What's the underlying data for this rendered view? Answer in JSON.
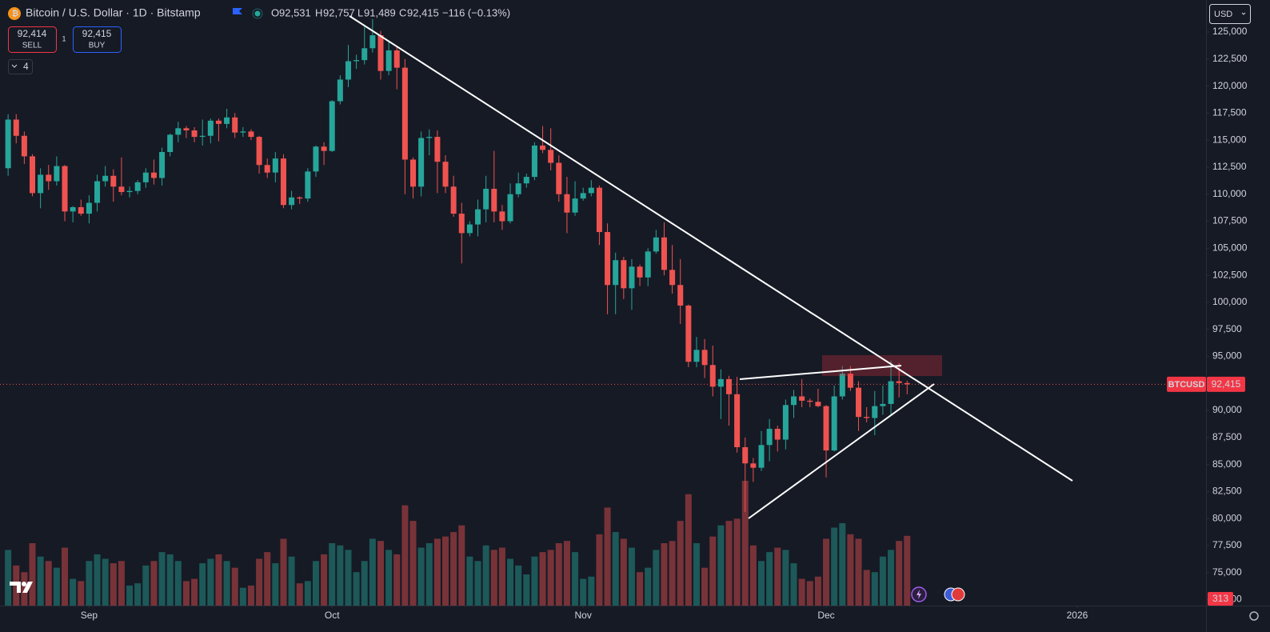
{
  "header": {
    "title": "Bitcoin / U.S. Dollar · 1D · Bitstamp",
    "open_label": "O",
    "open": "92,531",
    "high_label": "H",
    "high": "92,757",
    "low_label": "L",
    "low": "91,489",
    "close_label": "C",
    "close": "92,415",
    "change": "−116 (−0.13%)",
    "sell_price": "92,414",
    "sell": "SELL",
    "spread": "1",
    "buy_price": "92,415",
    "buy": "BUY",
    "indicators": "4",
    "currency": "USD",
    "symbol": "BTCUSD",
    "last_price": "92,415",
    "last_volume": "313"
  },
  "chart_data": {
    "type": "candlestick",
    "up_color": "#26a69a",
    "down_color": "#ef5350",
    "grid": false,
    "xlim": [
      -1,
      147.9
    ],
    "xticks": [
      {
        "value": 10,
        "label": "Sep"
      },
      {
        "value": 40,
        "label": "Oct"
      },
      {
        "value": 71,
        "label": "Nov"
      },
      {
        "value": 101,
        "label": "Dec"
      },
      {
        "value": 132,
        "label": "2026"
      }
    ],
    "ylim": [
      71950,
      127960
    ],
    "yticks": [
      {
        "value": 72500,
        "label": "72,500"
      },
      {
        "value": 75000,
        "label": "75,000"
      },
      {
        "value": 77500,
        "label": "77,500"
      },
      {
        "value": 80000,
        "label": "80,000"
      },
      {
        "value": 82500,
        "label": "82,500"
      },
      {
        "value": 85000,
        "label": "85,000"
      },
      {
        "value": 87500,
        "label": "87,500"
      },
      {
        "value": 90000,
        "label": "90,000"
      },
      {
        "value": 92500,
        "label": "92,500"
      },
      {
        "value": 95000,
        "label": "95,000"
      },
      {
        "value": 97500,
        "label": "97,500"
      },
      {
        "value": 100000,
        "label": "100,000"
      },
      {
        "value": 102500,
        "label": "102,500"
      },
      {
        "value": 105000,
        "label": "105,000"
      },
      {
        "value": 107500,
        "label": "107,500"
      },
      {
        "value": 110000,
        "label": "110,000"
      },
      {
        "value": 112500,
        "label": "112,500"
      },
      {
        "value": 115000,
        "label": "115,000"
      },
      {
        "value": 117500,
        "label": "117,500"
      },
      {
        "value": 120000,
        "label": "120,000"
      },
      {
        "value": 122500,
        "label": "122,500"
      },
      {
        "value": 125000,
        "label": "125,000"
      }
    ],
    "last_price": 92415,
    "open": [
      112400,
      116900,
      115400,
      113500,
      110100,
      111800,
      111200,
      112600,
      108400,
      108800,
      108200,
      109200,
      111200,
      111700,
      110700,
      110200,
      110300,
      111100,
      112000,
      111500,
      113900,
      115500,
      116100,
      115900,
      115300,
      115400,
      116800,
      116500,
      117100,
      115700,
      115800,
      115300,
      112700,
      112000,
      113300,
      109000,
      109700,
      109600,
      112100,
      114400,
      114000,
      118600,
      120600,
      122300,
      122400,
      123500,
      124700,
      121400,
      123300,
      121700,
      113200,
      110700,
      115200,
      115300,
      113000,
      110700,
      108200,
      106400,
      107200,
      108600,
      110500,
      108400,
      107500,
      110000,
      111000,
      111600,
      114500,
      114100,
      112900,
      110000,
      108300,
      109600,
      110100,
      110600,
      106500,
      101600,
      103900,
      101300,
      103300,
      102300,
      104700,
      106000,
      103000,
      101600,
      99700,
      94500,
      95600,
      94200,
      92200,
      92900,
      91500,
      86600,
      85100,
      84700,
      86800,
      88300,
      87300,
      90500,
      91300,
      90900,
      90800,
      90400,
      86300,
      91300,
      93400,
      92100,
      89400,
      89300,
      90400,
      90600,
      92700,
      92531
    ],
    "high": [
      117400,
      117400,
      115800,
      113700,
      112400,
      112700,
      113500,
      112700,
      108900,
      109500,
      109900,
      111800,
      112600,
      112300,
      113400,
      110700,
      111300,
      112400,
      113200,
      114300,
      115600,
      116700,
      116300,
      116200,
      116900,
      117000,
      117000,
      117900,
      117500,
      116200,
      116000,
      115400,
      113300,
      113900,
      113700,
      110300,
      109800,
      112400,
      114500,
      114800,
      118700,
      121000,
      123800,
      122900,
      125500,
      126200,
      125100,
      124100,
      123700,
      122500,
      113400,
      115800,
      116000,
      115900,
      113600,
      111700,
      109200,
      107500,
      109500,
      111700,
      114000,
      109000,
      111000,
      112000,
      111900,
      114800,
      116300,
      116100,
      113600,
      111600,
      111200,
      110600,
      111300,
      110800,
      107300,
      104600,
      104200,
      104000,
      103500,
      105000,
      106700,
      107400,
      105300,
      104000,
      99800,
      96800,
      96600,
      96000,
      93800,
      93200,
      93100,
      87500,
      85600,
      88100,
      89200,
      88600,
      91000,
      91900,
      92900,
      91100,
      92000,
      90500,
      92300,
      94100,
      94100,
      92700,
      90300,
      91800,
      92300,
      94600,
      94400,
      92757
    ],
    "low": [
      111700,
      114700,
      112800,
      109800,
      108700,
      110400,
      110800,
      107500,
      107400,
      108000,
      107300,
      108400,
      110700,
      109300,
      109900,
      109700,
      110000,
      110600,
      110900,
      110800,
      113500,
      114800,
      115200,
      114800,
      114500,
      114700,
      114900,
      116100,
      115200,
      115300,
      115000,
      111900,
      111500,
      111100,
      108700,
      108600,
      109100,
      109300,
      111600,
      112700,
      113900,
      118300,
      119900,
      121600,
      122000,
      123100,
      120600,
      121000,
      119700,
      110000,
      109600,
      109800,
      113600,
      110100,
      110100,
      107900,
      103600,
      106100,
      106100,
      107400,
      107400,
      106700,
      107300,
      109700,
      110600,
      111300,
      113800,
      112200,
      109300,
      106400,
      108000,
      109400,
      109800,
      105300,
      98900,
      98900,
      100300,
      99300,
      101500,
      101500,
      104500,
      102500,
      100800,
      98000,
      94000,
      94000,
      93000,
      91300,
      89200,
      88600,
      86100,
      80600,
      83400,
      84400,
      85300,
      86200,
      86400,
      89300,
      90300,
      90300,
      90300,
      83800,
      86200,
      91000,
      91800,
      88100,
      88900,
      87700,
      89600,
      89600,
      91200,
      91489
    ],
    "close": [
      116900,
      115400,
      113500,
      110100,
      111800,
      111200,
      112600,
      108400,
      108800,
      108200,
      109200,
      111200,
      111700,
      110700,
      110200,
      110300,
      111100,
      112000,
      111500,
      113900,
      115500,
      116100,
      115900,
      115300,
      115400,
      116800,
      116500,
      117100,
      115700,
      115800,
      115300,
      112700,
      112000,
      113300,
      109000,
      109700,
      109600,
      112100,
      114400,
      114000,
      118600,
      120600,
      122300,
      122400,
      123500,
      124700,
      121400,
      123300,
      121700,
      113200,
      110700,
      115200,
      115300,
      113000,
      110700,
      108200,
      106400,
      107200,
      108600,
      110500,
      108400,
      107500,
      110000,
      111000,
      111600,
      114500,
      114100,
      112900,
      110000,
      108300,
      109600,
      110100,
      110600,
      106500,
      101600,
      103900,
      101300,
      103300,
      102300,
      104700,
      106000,
      103000,
      101600,
      99700,
      94500,
      95600,
      94200,
      92200,
      92900,
      91500,
      86600,
      85100,
      84700,
      86800,
      88300,
      87300,
      90500,
      91300,
      90900,
      90800,
      90400,
      86300,
      91300,
      93400,
      92100,
      89400,
      89300,
      90400,
      90600,
      92700,
      92531,
      92415
    ],
    "volume": [
      250,
      180,
      150,
      280,
      220,
      200,
      170,
      260,
      120,
      110,
      200,
      230,
      210,
      190,
      200,
      90,
      100,
      180,
      200,
      240,
      230,
      200,
      110,
      120,
      190,
      210,
      230,
      200,
      170,
      80,
      90,
      210,
      240,
      190,
      300,
      220,
      100,
      110,
      200,
      230,
      280,
      270,
      250,
      150,
      200,
      300,
      290,
      250,
      230,
      450,
      380,
      260,
      280,
      300,
      310,
      330,
      360,
      220,
      200,
      270,
      250,
      260,
      210,
      180,
      140,
      220,
      240,
      250,
      280,
      290,
      240,
      120,
      130,
      320,
      440,
      330,
      300,
      260,
      150,
      170,
      250,
      280,
      290,
      380,
      500,
      280,
      170,
      310,
      360,
      380,
      390,
      560,
      270,
      200,
      240,
      260,
      250,
      190,
      120,
      110,
      130,
      300,
      350,
      370,
      320,
      300,
      160,
      150,
      220,
      250,
      290,
      313
    ]
  }
}
